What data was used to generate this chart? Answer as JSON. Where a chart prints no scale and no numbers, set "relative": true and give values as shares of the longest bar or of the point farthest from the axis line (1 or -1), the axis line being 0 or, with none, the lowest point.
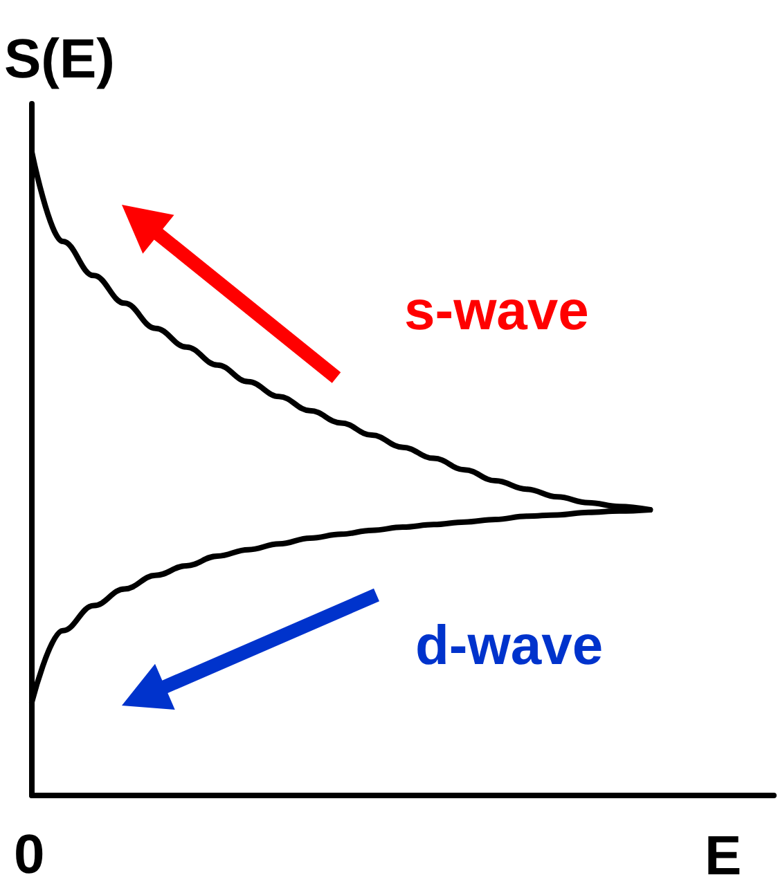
{
  "chart_data": {
    "type": "line",
    "relative": true,
    "ylabel": "S(E)",
    "xlabel": "E",
    "categories": [
      null,
      null,
      null,
      null,
      null,
      null,
      null,
      null,
      null,
      null,
      null,
      null,
      null,
      null,
      null,
      null,
      null,
      null,
      null,
      null,
      null,
      null,
      null,
      null,
      null
    ],
    "series": [
      {
        "color": "#000000",
        "values": [
          1,
          0.861,
          0.808,
          0.765,
          0.726,
          0.697,
          0.669,
          0.643,
          0.62,
          0.598,
          0.579,
          0.56,
          0.541,
          0.524,
          0.506,
          0.489,
          0.476,
          0.464,
          0.455,
          0.449,
          0.444,
          null,
          null,
          null,
          null
        ]
      },
      {
        "color": "#000000",
        "values": [
          0.145,
          0.256,
          0.295,
          0.321,
          0.342,
          0.357,
          0.372,
          0.382,
          0.391,
          0.4,
          0.406,
          0.412,
          0.417,
          0.421,
          0.425,
          0.429,
          0.434,
          0.436,
          0.44,
          0.442,
          0.444,
          null,
          null,
          null,
          null
        ]
      }
    ],
    "annotations": [
      "0",
      "s-wave",
      "d-wave"
    ],
    "grid": false,
    "marker": "none",
    "line_style": "solid"
  }
}
